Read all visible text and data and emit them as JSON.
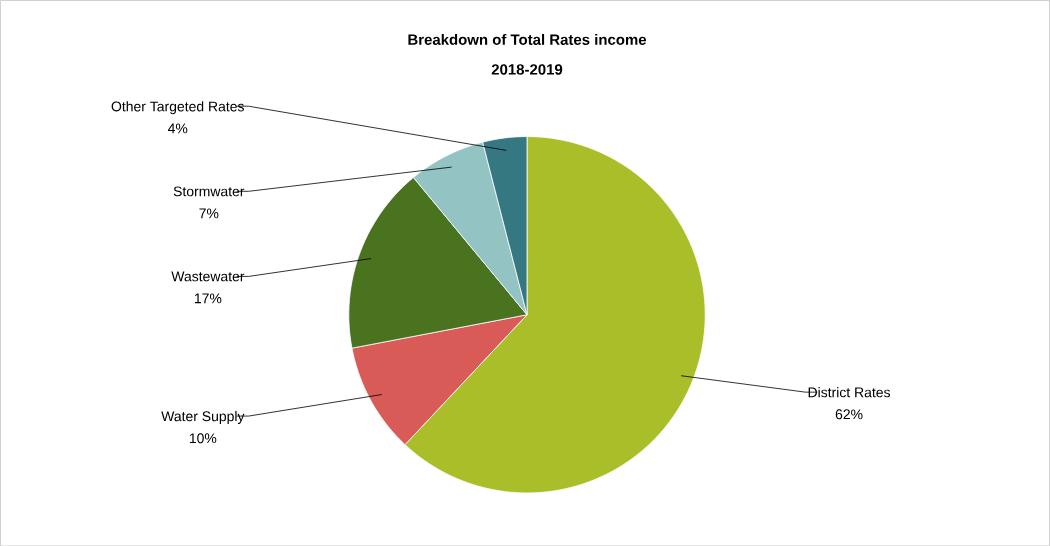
{
  "chart_data": {
    "type": "pie",
    "title": "Breakdown of Total Rates income",
    "subtitle": "2018-2019",
    "categories": [
      "District Rates",
      "Water Supply",
      "Wastewater",
      "Stormwater",
      "Other Targeted Rates"
    ],
    "values": [
      62,
      10,
      17,
      7,
      4
    ],
    "value_labels": [
      "62%",
      "10%",
      "17%",
      "7%",
      "4%"
    ],
    "colors": [
      "#a9be28",
      "#d95b57",
      "#4a7320",
      "#93c4c3",
      "#357882"
    ]
  }
}
